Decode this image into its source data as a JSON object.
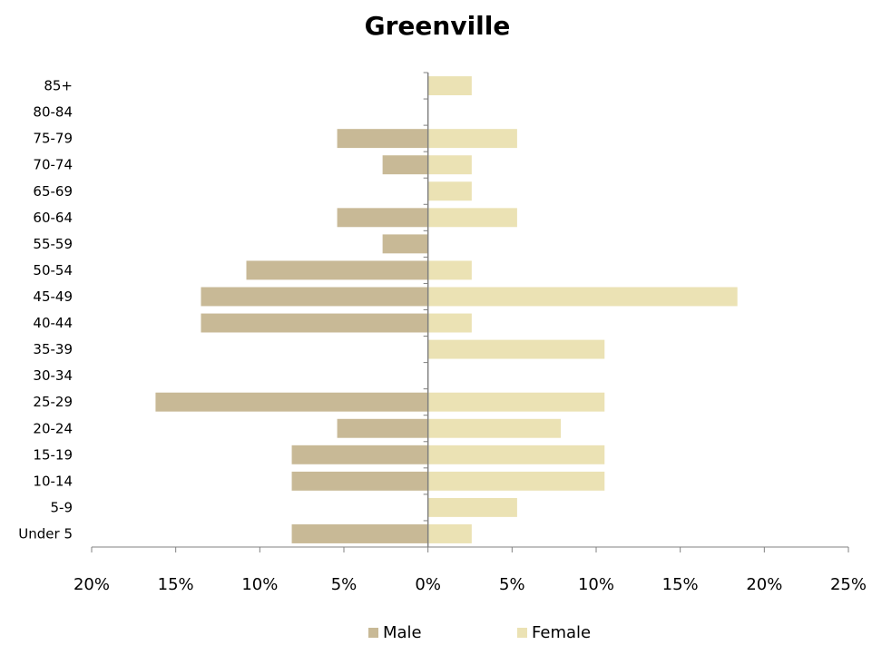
{
  "chart_data": {
    "type": "bar",
    "orientation": "horizontal",
    "title": "Greenville",
    "categories": [
      "Under 5",
      "5-9",
      "10-14",
      "15-19",
      "20-24",
      "25-29",
      "30-34",
      "35-39",
      "40-44",
      "45-49",
      "50-54",
      "55-59",
      "60-64",
      "65-69",
      "70-74",
      "75-79",
      "80-84",
      "85+"
    ],
    "series": [
      {
        "name": "Male",
        "color": "#c8b996",
        "values": [
          8.1,
          0,
          8.1,
          8.1,
          5.4,
          16.2,
          0,
          0,
          13.5,
          13.5,
          10.8,
          2.7,
          5.4,
          0,
          2.7,
          5.4,
          0,
          0
        ]
      },
      {
        "name": "Female",
        "color": "#ebe2b4",
        "values": [
          2.6,
          5.3,
          10.5,
          10.5,
          7.9,
          10.5,
          0,
          10.5,
          2.6,
          18.4,
          2.6,
          0,
          5.3,
          2.6,
          2.6,
          5.3,
          0,
          2.6
        ]
      }
    ],
    "xlim": [
      -20,
      25
    ],
    "xticks": [
      -20,
      -15,
      -10,
      -5,
      0,
      5,
      10,
      15,
      20,
      25
    ],
    "xtick_labels": [
      "20%",
      "15%",
      "10%",
      "5%",
      "0%",
      "5%",
      "10%",
      "15%",
      "20%",
      "25%"
    ],
    "xlabel": "",
    "ylabel": "",
    "grid": false,
    "legend_position": "bottom",
    "axis_color": "#808080"
  }
}
